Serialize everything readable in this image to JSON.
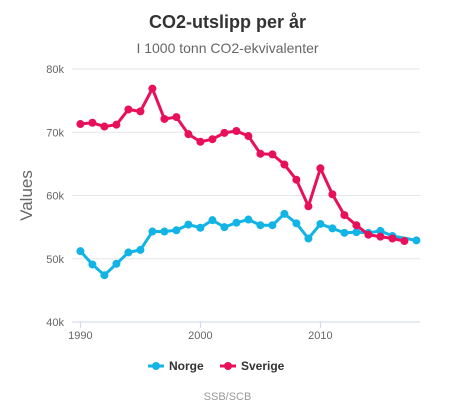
{
  "chart_data": {
    "type": "line",
    "title": "CO2-utslipp per år",
    "subtitle": "I 1000 tonn CO2-ekvivalenter",
    "ylabel": "Values",
    "xlabel": "",
    "credits": "SSB/SCB",
    "x": [
      1990,
      1991,
      1992,
      1993,
      1994,
      1995,
      1996,
      1997,
      1998,
      1999,
      2000,
      2001,
      2002,
      2003,
      2004,
      2005,
      2006,
      2007,
      2008,
      2009,
      2010,
      2011,
      2012,
      2013,
      2014,
      2015,
      2016,
      2017,
      2018
    ],
    "xlim": [
      1989.3,
      2018.3
    ],
    "ylim": [
      40000,
      80000
    ],
    "xticks": [
      1990,
      2000,
      2010
    ],
    "yticks": [
      40000,
      50000,
      60000,
      70000,
      80000
    ],
    "ytick_labels": [
      "40k",
      "50k",
      "60k",
      "70k",
      "80k"
    ],
    "grid": true,
    "legend_position": "bottom-center",
    "series": [
      {
        "name": "Norge",
        "color": "#12b4e6",
        "values": [
          51200,
          49100,
          47400,
          49200,
          51000,
          51400,
          54300,
          54300,
          54500,
          55400,
          54900,
          56100,
          55000,
          55700,
          56200,
          55300,
          55300,
          57100,
          55600,
          53200,
          55500,
          54800,
          54100,
          54200,
          54100,
          54400,
          53600,
          null,
          52900
        ]
      },
      {
        "name": "Sverige",
        "color": "#e8105a",
        "values": [
          71300,
          71500,
          70900,
          71200,
          73600,
          73300,
          76900,
          72100,
          72400,
          69700,
          68500,
          68900,
          69900,
          70200,
          69400,
          66600,
          66500,
          64900,
          62500,
          58300,
          64300,
          60200,
          56900,
          55300,
          53800,
          53500,
          53200,
          52800,
          null
        ]
      }
    ]
  }
}
